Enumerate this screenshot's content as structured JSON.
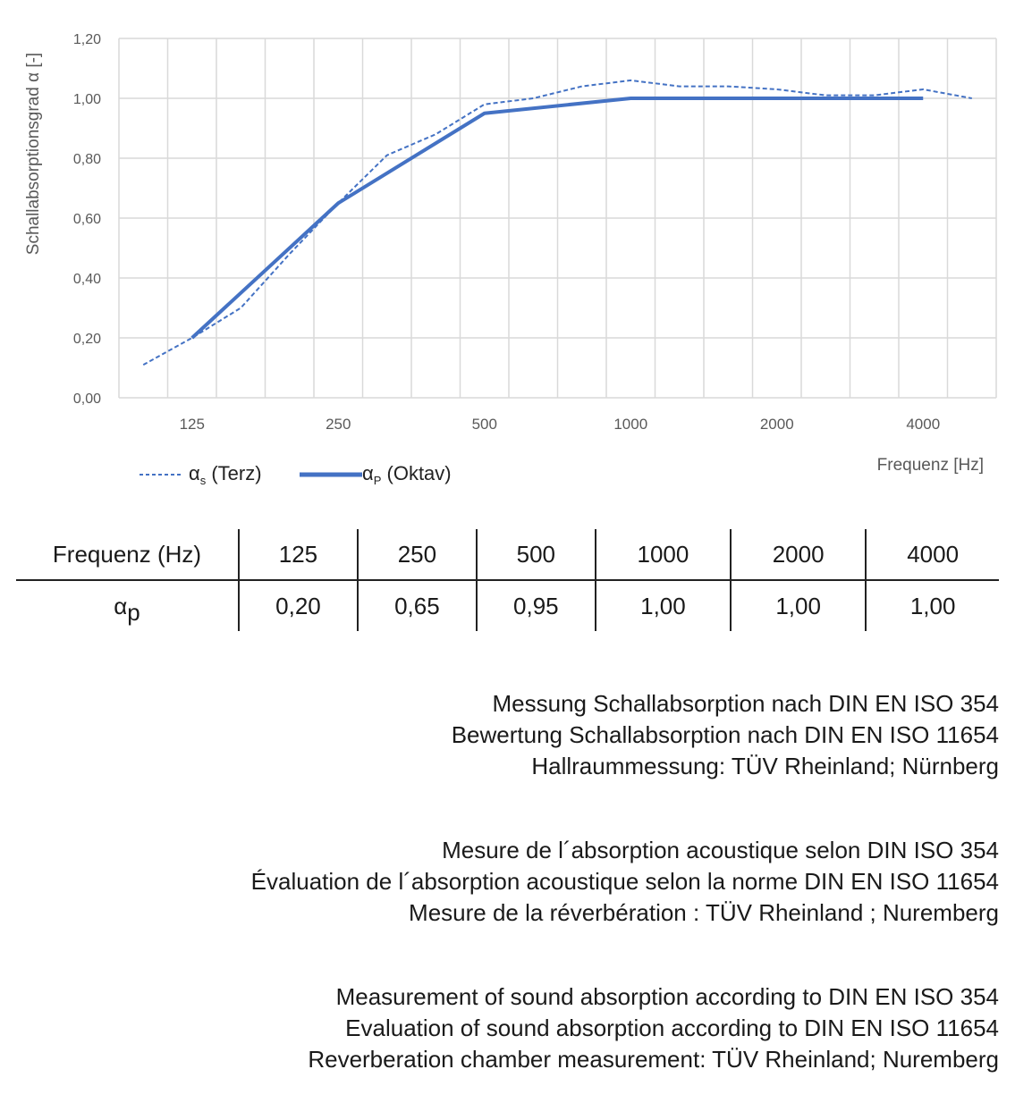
{
  "chart_data": {
    "type": "line",
    "ylabel": "Schallabsorptionsgrad α [-]",
    "xlabel": "Frequenz [Hz]",
    "ylim": [
      0,
      1.2
    ],
    "yticks": [
      "0,00",
      "0,20",
      "0,40",
      "0,60",
      "0,80",
      "1,00",
      "1,20"
    ],
    "categories": [
      "100",
      "125",
      "160",
      "200",
      "250",
      "315",
      "400",
      "500",
      "630",
      "800",
      "1000",
      "1250",
      "1600",
      "2000",
      "2500",
      "3150",
      "4000",
      "5000"
    ],
    "xtick_labels": [
      "125",
      "250",
      "500",
      "1000",
      "2000",
      "4000"
    ],
    "grid": true,
    "legend_position": "bottom-left",
    "series": [
      {
        "name": "αs (Terz)",
        "name_main": "α",
        "name_sub": "s",
        "name_rest": " (Terz)",
        "style": "dashed",
        "color": "#4472C4",
        "values": [
          0.11,
          0.2,
          0.3,
          0.48,
          0.65,
          0.81,
          0.88,
          0.98,
          1.0,
          1.04,
          1.06,
          1.04,
          1.04,
          1.03,
          1.01,
          1.01,
          1.03,
          1.0
        ]
      },
      {
        "name": "αP (Oktav)",
        "name_main": "α",
        "name_sub": "P",
        "name_rest": " (Oktav)",
        "style": "solid",
        "color": "#4472C4",
        "x": [
          "125",
          "250",
          "500",
          "1000",
          "2000",
          "4000"
        ],
        "values": [
          0.2,
          0.65,
          0.95,
          1.0,
          1.0,
          1.0
        ]
      }
    ]
  },
  "table": {
    "row1_label": "Frequenz (Hz)",
    "row1": [
      "125",
      "250",
      "500",
      "1000",
      "2000",
      "4000"
    ],
    "row2_label_main": "α",
    "row2_label_sub": "p",
    "row2": [
      "0,20",
      "0,65",
      "0,95",
      "1,00",
      "1,00",
      "1,00"
    ]
  },
  "notes": [
    [
      "Messung Schallabsorption nach DIN EN ISO 354",
      "Bewertung Schallabsorption nach DIN EN ISO 11654",
      "Hallraummessung: TÜV Rheinland; Nürnberg"
    ],
    [
      "Mesure de l´absorption acoustique selon DIN ISO 354",
      "Évaluation de l´absorption acoustique selon la norme DIN EN ISO 11654",
      "Mesure de la réverbération : TÜV Rheinland ; Nuremberg"
    ],
    [
      "Measurement of sound absorption according to DIN EN ISO 354",
      "Evaluation of sound absorption according to DIN EN ISO 11654",
      "Reverberation chamber measurement: TÜV Rheinland; Nuremberg"
    ]
  ]
}
